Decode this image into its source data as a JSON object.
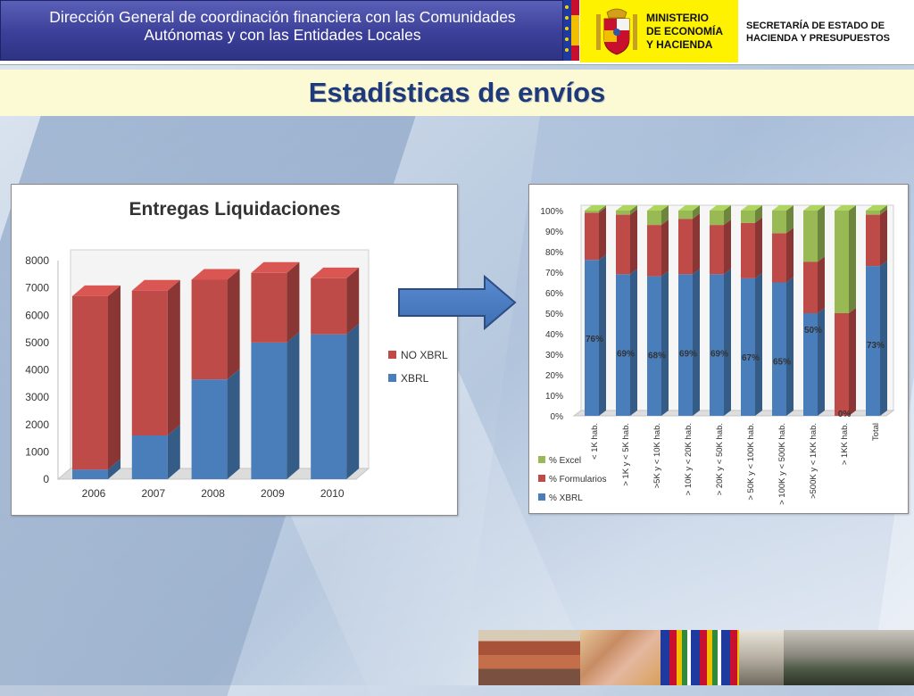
{
  "header": {
    "title_line1": "Dirección General de coordinación financiera con las Comunidades",
    "title_line2": "Autónomas y con las Entidades Locales",
    "ministerio": "MINISTERIO\nDE ECONOMÍA\nY HACIENDA",
    "secretaria": "SECRETARÍA DE ESTADO DE\nHACIENDA Y PRESUPUESTOS"
  },
  "page": {
    "title": "Estadísticas de envíos"
  },
  "colors": {
    "xbrl": "#4a7ebb",
    "no_xbrl": "#be4b48",
    "formularios": "#be4b48",
    "excel": "#98b954",
    "title": "#1f3a78",
    "header_blue": "#3b3f98",
    "ministerio_yellow": "#fff200"
  },
  "icons": {
    "arrow": "right-arrow-icon",
    "coat": "coat-of-arms-icon",
    "flags": "eu-flag-icon"
  },
  "chart_data": [
    {
      "type": "bar",
      "stacked": true,
      "title": "Entregas Liquidaciones",
      "categories": [
        "2006",
        "2007",
        "2008",
        "2009",
        "2010"
      ],
      "series": [
        {
          "name": "XBRL",
          "values": [
            350,
            1600,
            3650,
            5000,
            5300
          ]
        },
        {
          "name": "NO XBRL",
          "values": [
            6350,
            5300,
            3650,
            2550,
            2050
          ]
        }
      ],
      "yticks": [
        "0",
        "1000",
        "2000",
        "3000",
        "4000",
        "5000",
        "6000",
        "7000",
        "8000"
      ],
      "ylim": [
        0,
        8000
      ],
      "legend": "right",
      "grid": false
    },
    {
      "type": "bar",
      "stacked": true,
      "percent": true,
      "categories": [
        "< 1K hab.",
        "> 1K y < 5K hab.",
        ">5K y < 10K hab.",
        "> 10K y < 20K hab.",
        "> 20K y < 50K hab.",
        "> 50K y < 100K hab.",
        "> 100K y < 500K hab.",
        ">500K y < 1KK hab.",
        "> 1KK hab.",
        "Total"
      ],
      "series": [
        {
          "name": "% XBRL",
          "values": [
            76,
            69,
            68,
            69,
            69,
            67,
            65,
            50,
            0,
            73
          ]
        },
        {
          "name": "% Formularios",
          "values": [
            23,
            29,
            25,
            27,
            24,
            27,
            24,
            25,
            50,
            25
          ]
        },
        {
          "name": "% Excel",
          "values": [
            1,
            2,
            7,
            4,
            7,
            6,
            11,
            25,
            50,
            2
          ]
        }
      ],
      "data_labels": [
        "76%",
        "69%",
        "68%",
        "69%",
        "69%",
        "67%",
        "65%",
        "50%",
        "0%",
        "73%"
      ],
      "yticks": [
        "0%",
        "10%",
        "20%",
        "30%",
        "40%",
        "50%",
        "60%",
        "70%",
        "80%",
        "90%",
        "100%"
      ],
      "ylim": [
        0,
        100
      ],
      "legend": "bottom-left",
      "grid": false
    }
  ]
}
